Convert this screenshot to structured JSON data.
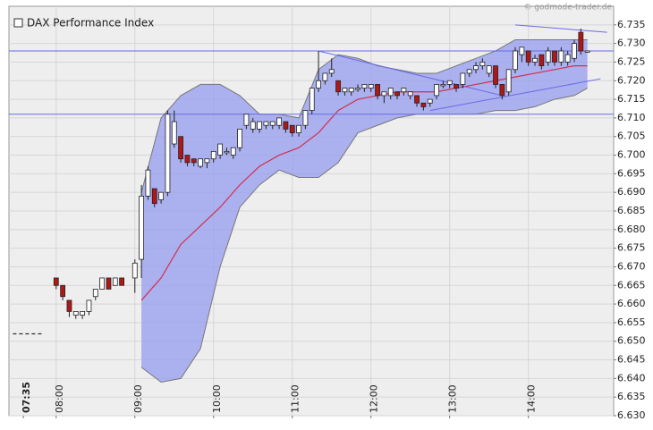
{
  "chart_data": {
    "type": "candlestick",
    "title": "DAX Performance Index",
    "source": "© godmode-trader.de",
    "x": [
      "08:00",
      "08:05",
      "08:10",
      "08:15",
      "08:20",
      "08:25",
      "08:30",
      "08:35",
      "08:40",
      "08:45",
      "08:50",
      "09:00",
      "09:05",
      "09:10",
      "09:15",
      "09:20",
      "09:25",
      "09:30",
      "09:35",
      "09:40",
      "09:45",
      "09:50",
      "09:55",
      "10:00",
      "10:05",
      "10:10",
      "10:15",
      "10:20",
      "10:25",
      "10:30",
      "10:35",
      "10:40",
      "10:45",
      "10:50",
      "10:55",
      "11:00",
      "11:05",
      "11:10",
      "11:15",
      "11:20",
      "11:25",
      "11:30",
      "11:35",
      "11:40",
      "11:45",
      "11:50",
      "11:55",
      "12:00",
      "12:05",
      "12:10",
      "12:15",
      "12:20",
      "12:25",
      "12:30",
      "12:35",
      "12:40",
      "12:45",
      "12:50",
      "12:55",
      "13:00",
      "13:05",
      "13:10",
      "13:15",
      "13:20",
      "13:25",
      "13:30",
      "13:35",
      "13:40",
      "13:45",
      "13:50",
      "13:55",
      "14:00",
      "14:05",
      "14:10",
      "14:15",
      "14:20",
      "14:25",
      "14:30",
      "14:35",
      "14:40",
      "14:45"
    ],
    "open": [
      6.667,
      6.665,
      6.661,
      6.657,
      6.657,
      6.658,
      6.662,
      6.664,
      6.667,
      6.665,
      6.667,
      6.667,
      6.672,
      6.689,
      6.691,
      6.688,
      6.69,
      6.703,
      6.705,
      6.7,
      6.699,
      6.697,
      6.698,
      6.699,
      6.7,
      6.701,
      6.7,
      6.702,
      6.708,
      6.707,
      6.707,
      6.708,
      6.708,
      6.708,
      6.709,
      6.708,
      6.706,
      6.708,
      6.712,
      6.718,
      6.72,
      6.722,
      6.72,
      6.717,
      6.717,
      6.718,
      6.718,
      6.718,
      6.719,
      6.716,
      6.716,
      6.717,
      6.717,
      6.716,
      6.716,
      6.714,
      6.714,
      6.716,
      6.719,
      6.719,
      6.719,
      6.719,
      6.722,
      6.723,
      6.724,
      6.722,
      6.724,
      6.719,
      6.717,
      6.723,
      6.727,
      6.728,
      6.725,
      6.727,
      6.725,
      6.728,
      6.725,
      6.725,
      6.726,
      6.733,
      6.728
    ],
    "high": [
      6.667,
      6.665,
      6.661,
      6.658,
      6.658,
      6.661,
      6.664,
      6.667,
      6.667,
      6.667,
      6.667,
      6.672,
      6.692,
      6.697,
      6.691,
      6.69,
      6.712,
      6.712,
      6.705,
      6.7,
      6.699,
      6.699,
      6.699,
      6.701,
      6.703,
      6.702,
      6.702,
      6.707,
      6.711,
      6.71,
      6.709,
      6.709,
      6.709,
      6.71,
      6.709,
      6.708,
      6.708,
      6.712,
      6.718,
      6.728,
      6.722,
      6.726,
      6.72,
      6.718,
      6.718,
      6.719,
      6.719,
      6.719,
      6.719,
      6.717,
      6.718,
      6.717,
      6.718,
      6.717,
      6.716,
      6.714,
      6.715,
      6.719,
      6.72,
      6.72,
      6.719,
      6.722,
      6.723,
      6.725,
      6.726,
      6.724,
      6.724,
      6.719,
      6.723,
      6.729,
      6.729,
      6.728,
      6.727,
      6.727,
      6.729,
      6.728,
      6.729,
      6.728,
      6.731,
      6.734,
      6.728
    ],
    "low": [
      6.664,
      6.661,
      6.6565,
      6.656,
      6.656,
      6.657,
      6.661,
      6.664,
      6.664,
      6.665,
      6.665,
      6.663,
      6.667,
      6.688,
      6.686,
      6.687,
      6.689,
      6.702,
      6.698,
      6.697,
      6.697,
      6.6965,
      6.6965,
      6.698,
      6.699,
      6.7,
      6.699,
      6.701,
      6.707,
      6.706,
      6.706,
      6.707,
      6.707,
      6.707,
      6.706,
      6.705,
      6.705,
      6.707,
      6.711,
      6.717,
      6.719,
      6.721,
      6.716,
      6.716,
      6.716,
      6.717,
      6.717,
      6.717,
      6.715,
      6.714,
      6.715,
      6.715,
      6.716,
      6.715,
      6.713,
      6.712,
      6.713,
      6.715,
      6.718,
      6.718,
      6.717,
      6.718,
      6.721,
      6.722,
      6.723,
      6.721,
      6.718,
      6.715,
      6.716,
      6.722,
      6.725,
      6.724,
      6.724,
      6.723,
      6.724,
      6.724,
      6.724,
      6.724,
      6.725,
      6.727,
      6.728
    ],
    "close": [
      6.665,
      6.662,
      6.658,
      6.658,
      6.658,
      6.661,
      6.664,
      6.667,
      6.664,
      6.667,
      6.665,
      6.671,
      6.689,
      6.696,
      6.687,
      6.69,
      6.711,
      6.709,
      6.699,
      6.698,
      6.698,
      6.699,
      6.699,
      6.701,
      6.703,
      6.701,
      6.702,
      6.707,
      6.711,
      6.709,
      6.709,
      6.709,
      6.709,
      6.71,
      6.707,
      6.706,
      6.708,
      6.712,
      6.718,
      6.72,
      6.722,
      6.723,
      6.717,
      6.718,
      6.718,
      6.718,
      6.719,
      6.719,
      6.716,
      6.717,
      6.718,
      6.716,
      6.718,
      6.717,
      6.714,
      6.713,
      6.715,
      6.719,
      6.719,
      6.72,
      6.718,
      6.722,
      6.723,
      6.724,
      6.725,
      6.724,
      6.719,
      6.716,
      6.723,
      6.728,
      6.729,
      6.725,
      6.726,
      6.724,
      6.728,
      6.725,
      6.728,
      6.727,
      6.73,
      6.728,
      6.728
    ],
    "up_color": "#ffffff",
    "down_color": "#b01818",
    "bands": {
      "x": [
        "09:05",
        "09:20",
        "09:35",
        "09:50",
        "10:05",
        "10:20",
        "10:35",
        "10:50",
        "11:05",
        "11:20",
        "11:35",
        "11:50",
        "12:05",
        "12:20",
        "12:35",
        "12:50",
        "13:05",
        "13:20",
        "13:35",
        "13:50",
        "14:05",
        "14:20",
        "14:35",
        "14:45"
      ],
      "upper": [
        6.69,
        6.71,
        6.716,
        6.719,
        6.719,
        6.716,
        6.711,
        6.711,
        6.71,
        6.723,
        6.727,
        6.726,
        6.724,
        6.723,
        6.722,
        6.722,
        6.724,
        6.726,
        6.728,
        6.731,
        6.731,
        6.731,
        6.731,
        6.731
      ],
      "middle": [
        6.661,
        6.667,
        6.676,
        6.681,
        6.686,
        6.692,
        6.697,
        6.7,
        6.702,
        6.706,
        6.712,
        6.715,
        6.716,
        6.717,
        6.717,
        6.717,
        6.718,
        6.719,
        6.72,
        6.721,
        6.722,
        6.723,
        6.724,
        6.724
      ],
      "lower": [
        6.643,
        6.639,
        6.64,
        6.648,
        6.67,
        6.686,
        6.692,
        6.696,
        6.694,
        6.694,
        6.698,
        6.706,
        6.708,
        6.71,
        6.711,
        6.711,
        6.711,
        6.711,
        6.712,
        6.712,
        6.713,
        6.715,
        6.716,
        6.718
      ],
      "fill": "#9aa0ee",
      "middle_color": "#d03050"
    },
    "levels": [
      6.728,
      6.711
    ],
    "level_color": "#6a6ae8",
    "segments": [
      {
        "x": [
          "11:20",
          "13:40"
        ],
        "y": [
          6.728,
          6.716
        ],
        "color": "#6a6ae8"
      },
      {
        "x": [
          "12:45",
          "14:55"
        ],
        "y": [
          6.712,
          6.7205
        ],
        "color": "#6a6ae8"
      },
      {
        "x": [
          "13:50",
          "15:00"
        ],
        "y": [
          6.735,
          6.733
        ],
        "color": "#6a6ae8"
      },
      {
        "x": [
          "07:27",
          "07:50"
        ],
        "y": [
          6.652,
          6.652
        ],
        "color": "#000000",
        "dash": true
      }
    ],
    "xlim": [
      "07:24",
      "15:05"
    ],
    "xticks": [
      "07:35",
      "08:00",
      "09:00",
      "10:00",
      "11:00",
      "12:00",
      "13:00",
      "14:00"
    ],
    "ylim": [
      6.63,
      6.74
    ],
    "yticks": [
      {
        "value": 6.63,
        "label": "6.630"
      },
      6.635,
      {
        "value": 6.64,
        "label": "6.640"
      },
      6.645,
      {
        "value": 6.65,
        "label": "6.650"
      },
      6.655,
      {
        "value": 6.66,
        "label": "6.660"
      },
      6.665,
      {
        "value": 6.67,
        "label": "6.670"
      },
      6.675,
      {
        "value": 6.68,
        "label": "6.680"
      },
      6.685,
      {
        "value": 6.69,
        "label": "6.690"
      },
      6.695,
      {
        "value": 6.7,
        "label": "6.700"
      },
      6.705,
      {
        "value": 6.71,
        "label": "6.710"
      },
      6.715,
      {
        "value": 6.72,
        "label": "6.720"
      },
      6.725,
      {
        "value": 6.73,
        "label": "6.730"
      },
      6.735
    ],
    "grid": true
  }
}
